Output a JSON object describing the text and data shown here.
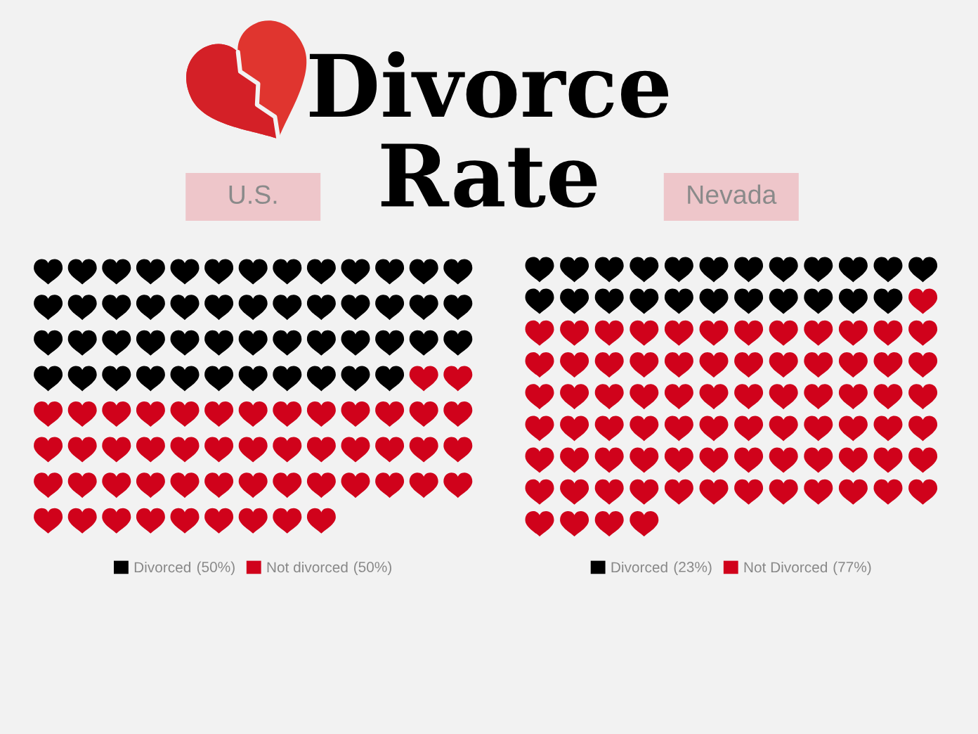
{
  "chart_data": [
    {
      "type": "other",
      "title": "Divorce Rate"
    },
    {
      "type": "other",
      "title": "U.S.",
      "series": [
        {
          "name": "Divorced",
          "color": "#000000",
          "values": [
            50
          ],
          "value_labels": [
            "(50%)"
          ]
        },
        {
          "name": "Not divorced",
          "color": "#d0021b",
          "values": [
            50
          ],
          "value_labels": [
            "(50%)"
          ]
        }
      ],
      "legend": "bottom"
    },
    {
      "type": "other",
      "title": "Nevada",
      "series": [
        {
          "name": "Divorced",
          "color": "#000000",
          "values": [
            23
          ],
          "value_labels": [
            "(23%)"
          ]
        },
        {
          "name": "Not Divorced",
          "color": "#d0021b",
          "values": [
            77
          ],
          "value_labels": [
            "(77%)"
          ]
        }
      ],
      "legend": "bottom"
    }
  ]
}
